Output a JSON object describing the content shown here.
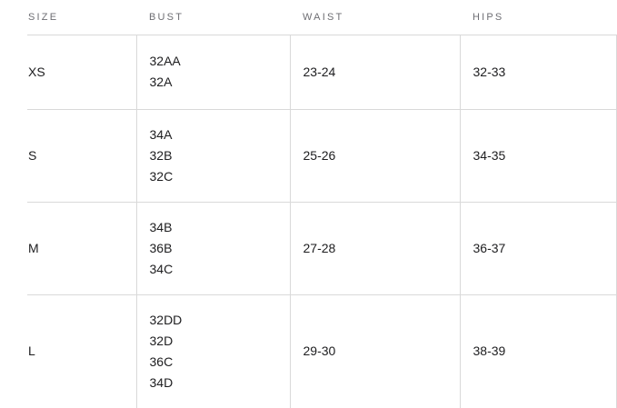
{
  "size_chart": {
    "headers": [
      "SIZE",
      "BUST",
      "WAIST",
      "HIPS"
    ],
    "rows": [
      {
        "size": "XS",
        "bust": [
          "32AA",
          "32A"
        ],
        "waist": "23-24",
        "hips": "32-33"
      },
      {
        "size": "S",
        "bust": [
          "34A",
          "32B",
          "32C"
        ],
        "waist": "25-26",
        "hips": "34-35"
      },
      {
        "size": "M",
        "bust": [
          "34B",
          "36B",
          "34C"
        ],
        "waist": "27-28",
        "hips": "36-37"
      },
      {
        "size": "L",
        "bust": [
          "32DD",
          "32D",
          "36C",
          "34D"
        ],
        "waist": "29-30",
        "hips": "38-39"
      }
    ],
    "colors": {
      "background": "#ffffff",
      "border": "#d9d9d9",
      "header_text": "#6e6e73",
      "body_text": "#1d1d1f"
    }
  }
}
